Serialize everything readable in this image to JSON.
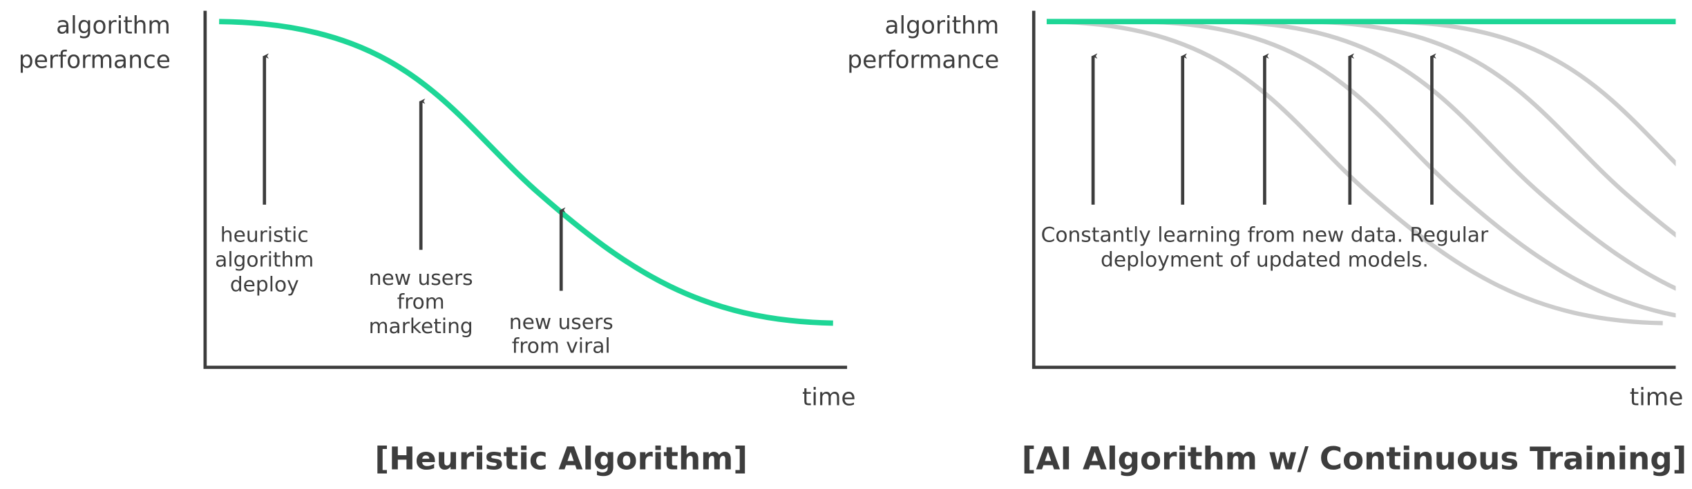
{
  "panels": [
    {
      "y_label": [
        "algorithm",
        "performance"
      ],
      "x_label": "time",
      "caption": "[Heuristic Algorithm]",
      "annotations": [
        {
          "lines": [
            "heuristic",
            "algorithm",
            "deploy"
          ]
        },
        {
          "lines": [
            "new users",
            "from",
            "marketing"
          ]
        },
        {
          "lines": [
            "new users",
            "from viral"
          ]
        }
      ]
    },
    {
      "y_label": [
        "algorithm",
        "performance"
      ],
      "x_label": "time",
      "caption": "[AI Algorithm w/ Continuous Training]",
      "annotations": [
        {
          "lines": [
            "Constantly learning from new data. Regular",
            "deployment of updated models."
          ]
        }
      ]
    }
  ]
}
